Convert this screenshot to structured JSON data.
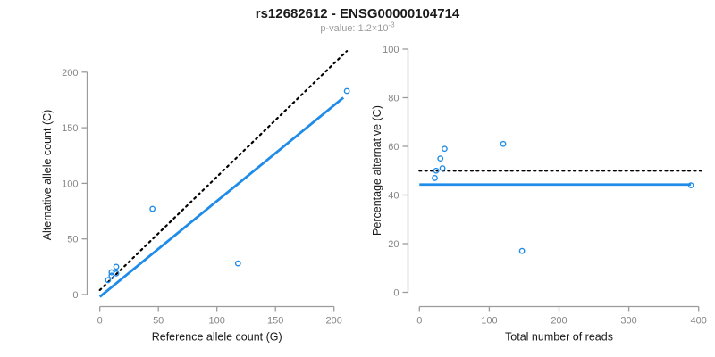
{
  "header": {
    "title": "rs12682612 - ENSG00000104714",
    "p_label": "p-value: ",
    "p_mantissa": "1.2×10",
    "p_exponent": "-3"
  },
  "colors": {
    "accent_blue": "#1e8ce8",
    "line_black": "#000000",
    "axis_gray": "#9b9b9b",
    "tick_label_gray": "#858585",
    "axis_title_color": "#1a1a1a",
    "title_color": "#1a1a1a",
    "subtitle_gray": "#9b9b9b",
    "background": "#ffffff"
  },
  "chart_data": [
    {
      "type": "scatter",
      "name": "allele-counts-scatter",
      "title": "",
      "xlabel": "Reference allele count (G)",
      "ylabel": "Alternative allele count (C)",
      "xticks": [
        0,
        50,
        100,
        150,
        200
      ],
      "yticks": [
        0,
        50,
        100,
        150,
        200
      ],
      "xlim": [
        0,
        215
      ],
      "ylim": [
        -5,
        220
      ],
      "grid": false,
      "legend": false,
      "points": [
        [
          7,
          13
        ],
        [
          10,
          17
        ],
        [
          10,
          20
        ],
        [
          14,
          19
        ],
        [
          14,
          25
        ],
        [
          45,
          77
        ],
        [
          118,
          28
        ],
        [
          211,
          183
        ]
      ],
      "lines": [
        {
          "name": "regression-line",
          "style": "solid",
          "color_key": "accent_blue",
          "x1": 0,
          "y1": -2,
          "x2": 208,
          "y2": 177
        },
        {
          "name": "identity-line",
          "style": "dotted",
          "color_key": "line_black",
          "x1": 0,
          "y1": 4,
          "x2": 211,
          "y2": 219
        }
      ]
    },
    {
      "type": "scatter",
      "name": "percentage-vs-reads-scatter",
      "title": "",
      "xlabel": "Total number of reads",
      "ylabel": "Percentage alternative (C)",
      "xticks": [
        0,
        100,
        200,
        300,
        400
      ],
      "yticks": [
        0,
        20,
        40,
        60,
        80,
        100
      ],
      "xlim": [
        0,
        410
      ],
      "ylim": [
        0,
        100
      ],
      "grid": false,
      "legend": false,
      "points": [
        [
          22,
          47
        ],
        [
          24,
          50
        ],
        [
          30,
          55
        ],
        [
          33,
          51
        ],
        [
          36,
          59
        ],
        [
          120,
          61
        ],
        [
          147,
          17
        ],
        [
          389,
          44
        ]
      ],
      "lines": [
        {
          "name": "mean-percentage-line",
          "style": "solid",
          "color_key": "accent_blue",
          "x1": 0,
          "y1": 44.3,
          "x2": 389,
          "y2": 44.3
        },
        {
          "name": "fifty-percent-line",
          "style": "dotted",
          "color_key": "line_black",
          "x1": 0,
          "y1": 50,
          "x2": 408,
          "y2": 50
        }
      ]
    }
  ]
}
